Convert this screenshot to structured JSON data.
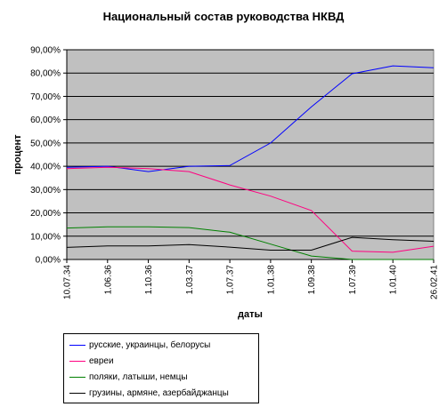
{
  "chart_data": {
    "type": "line",
    "title": "Национальный состав руководства НКВД",
    "xlabel": "даты",
    "ylabel": "процент",
    "categories": [
      "10.07.34",
      "1.06.36",
      "1.10.36",
      "1.03.37",
      "1.07.37",
      "1.01.38",
      "1.09.38",
      "1.07.39",
      "1.01.40",
      "26.02.41"
    ],
    "y_tick_labels": [
      "0,00%",
      "10,00%",
      "20,00%",
      "30,00%",
      "40,00%",
      "50,00%",
      "60,00%",
      "70,00%",
      "80,00%",
      "90,00%"
    ],
    "ylim": [
      0,
      90
    ],
    "grid": "horizontal",
    "plot_background": "#C0C0C0",
    "legend_position": "bottom-left",
    "series": [
      {
        "name": "русские, украинцы, белорусы",
        "color": "#0000FF",
        "values": [
          39.6,
          40.0,
          37.7,
          40.0,
          40.3,
          50.0,
          65.5,
          79.7,
          83.1,
          82.3
        ]
      },
      {
        "name": "евреи",
        "color": "#FF0080",
        "values": [
          39.0,
          39.6,
          39.0,
          37.7,
          32.0,
          27.2,
          21.0,
          3.6,
          3.1,
          5.7
        ]
      },
      {
        "name": "поляки, латыши, немцы",
        "color": "#008000",
        "values": [
          13.5,
          14.0,
          14.0,
          13.7,
          11.7,
          6.6,
          1.5,
          0.0,
          0.0,
          0.0
        ]
      },
      {
        "name": "грузины, армяне, азербайджанцы",
        "color": "#000000",
        "values": [
          5.2,
          5.8,
          5.8,
          6.4,
          5.3,
          4.0,
          4.0,
          9.5,
          8.5,
          7.8
        ]
      }
    ]
  }
}
